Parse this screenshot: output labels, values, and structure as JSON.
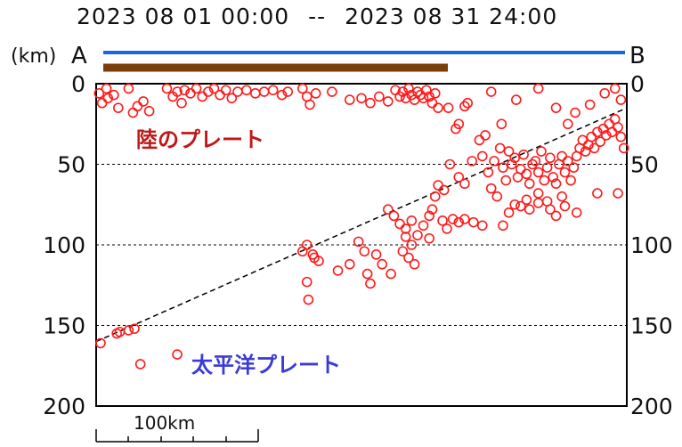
{
  "header": {
    "period_start": "2023 08 01 00:00",
    "separator": "--",
    "period_end": "2023 08 31 24:00",
    "unit_label": "(km)",
    "end_a": "A",
    "end_b": "B"
  },
  "colors": {
    "section_line": "#1a66e0",
    "region_bar": "#7a3e0a",
    "events": "#ff1a1a",
    "land_plate_label": "#c01818",
    "pacific_plate_label": "#3a3ad6"
  },
  "labels": {
    "land_plate": "陸のプレート",
    "pacific_plate": "太平洋プレート"
  },
  "scale_bar": {
    "label": "100km"
  },
  "chart_data": {
    "type": "scatter",
    "title": "",
    "xlabel": "",
    "ylabel": "(km)",
    "ylim": [
      0,
      200
    ],
    "y_inverted": true,
    "yticks": [
      0,
      50,
      100,
      150,
      200
    ],
    "y_tick_labels": [
      "0",
      "50",
      "100",
      "150",
      "200"
    ],
    "xlim": [
      0,
      360
    ],
    "grid_y": [
      50,
      100,
      150
    ],
    "plate_boundary_line": [
      [
        0,
        160
      ],
      [
        360,
        15
      ]
    ],
    "series": [
      {
        "marker": "open-circle",
        "points": [
          [
            2,
            6
          ],
          [
            4,
            12
          ],
          [
            7,
            3
          ],
          [
            8,
            9
          ],
          [
            12,
            7
          ],
          [
            15,
            15
          ],
          [
            22,
            3
          ],
          [
            25,
            18
          ],
          [
            28,
            14
          ],
          [
            32,
            11
          ],
          [
            36,
            17
          ],
          [
            48,
            3
          ],
          [
            52,
            8
          ],
          [
            55,
            5
          ],
          [
            58,
            12
          ],
          [
            60,
            4
          ],
          [
            64,
            6
          ],
          [
            68,
            3
          ],
          [
            72,
            8
          ],
          [
            76,
            5
          ],
          [
            80,
            3
          ],
          [
            84,
            7
          ],
          [
            88,
            4
          ],
          [
            92,
            9
          ],
          [
            96,
            5
          ],
          [
            102,
            4
          ],
          [
            108,
            6
          ],
          [
            114,
            5
          ],
          [
            120,
            4
          ],
          [
            126,
            7
          ],
          [
            130,
            5
          ],
          [
            140,
            3
          ],
          [
            143,
            8
          ],
          [
            145,
            13
          ],
          [
            149,
            6
          ],
          [
            160,
            5
          ],
          [
            172,
            10
          ],
          [
            180,
            9
          ],
          [
            186,
            12
          ],
          [
            192,
            8
          ],
          [
            198,
            11
          ],
          [
            203,
            4
          ],
          [
            206,
            8
          ],
          [
            208,
            5
          ],
          [
            210,
            9
          ],
          [
            212,
            3
          ],
          [
            214,
            7
          ],
          [
            216,
            10
          ],
          [
            218,
            5
          ],
          [
            220,
            7
          ],
          [
            222,
            9
          ],
          [
            224,
            4
          ],
          [
            226,
            8
          ],
          [
            228,
            12
          ],
          [
            230,
            6
          ],
          [
            232,
            15
          ],
          [
            239,
            15
          ],
          [
            244,
            28
          ],
          [
            246,
            25
          ],
          [
            250,
            14
          ],
          [
            252,
            12
          ],
          [
            268,
            5
          ],
          [
            275,
            25
          ],
          [
            285,
            10
          ],
          [
            300,
            3
          ],
          [
            312,
            15
          ],
          [
            320,
            25
          ],
          [
            325,
            18
          ],
          [
            335,
            13
          ],
          [
            345,
            6
          ],
          [
            352,
            3
          ],
          [
            356,
            10
          ],
          [
            262,
            45
          ],
          [
            266,
            55
          ],
          [
            270,
            48
          ],
          [
            274,
            40
          ],
          [
            276,
            52
          ],
          [
            278,
            60
          ],
          [
            280,
            42
          ],
          [
            282,
            50
          ],
          [
            284,
            46
          ],
          [
            286,
            58
          ],
          [
            288,
            53
          ],
          [
            290,
            44
          ],
          [
            292,
            56
          ],
          [
            294,
            62
          ],
          [
            296,
            50
          ],
          [
            298,
            48
          ],
          [
            300,
            55
          ],
          [
            302,
            42
          ],
          [
            304,
            60
          ],
          [
            306,
            52
          ],
          [
            308,
            46
          ],
          [
            310,
            58
          ],
          [
            312,
            62
          ],
          [
            314,
            50
          ],
          [
            316,
            45
          ],
          [
            318,
            55
          ],
          [
            320,
            48
          ],
          [
            322,
            60
          ],
          [
            324,
            52
          ],
          [
            326,
            45
          ],
          [
            328,
            40
          ],
          [
            330,
            35
          ],
          [
            332,
            42
          ],
          [
            334,
            38
          ],
          [
            336,
            33
          ],
          [
            338,
            40
          ],
          [
            340,
            30
          ],
          [
            342,
            36
          ],
          [
            344,
            28
          ],
          [
            346,
            32
          ],
          [
            348,
            25
          ],
          [
            350,
            30
          ],
          [
            352,
            22
          ],
          [
            354,
            27
          ],
          [
            356,
            33
          ],
          [
            358,
            40
          ],
          [
            268,
            65
          ],
          [
            272,
            70
          ],
          [
            284,
            75
          ],
          [
            292,
            72
          ],
          [
            300,
            68
          ],
          [
            306,
            73
          ],
          [
            316,
            70
          ],
          [
            340,
            68
          ],
          [
            354,
            68
          ],
          [
            276,
            88
          ],
          [
            280,
            80
          ],
          [
            288,
            76
          ],
          [
            294,
            78
          ],
          [
            300,
            74
          ],
          [
            308,
            78
          ],
          [
            312,
            82
          ],
          [
            318,
            76
          ],
          [
            326,
            80
          ],
          [
            240,
            50
          ],
          [
            246,
            58
          ],
          [
            250,
            62
          ],
          [
            255,
            48
          ],
          [
            260,
            35
          ],
          [
            264,
            32
          ],
          [
            232,
            63
          ],
          [
            236,
            66
          ],
          [
            230,
            70
          ],
          [
            228,
            78
          ],
          [
            226,
            82
          ],
          [
            198,
            78
          ],
          [
            202,
            82
          ],
          [
            206,
            87
          ],
          [
            210,
            90
          ],
          [
            214,
            85
          ],
          [
            218,
            94
          ],
          [
            222,
            88
          ],
          [
            226,
            96
          ],
          [
            235,
            85
          ],
          [
            238,
            90
          ],
          [
            242,
            84
          ],
          [
            246,
            86
          ],
          [
            250,
            84
          ],
          [
            256,
            86
          ],
          [
            262,
            88
          ],
          [
            210,
            95
          ],
          [
            214,
            100
          ],
          [
            208,
            104
          ],
          [
            212,
            108
          ],
          [
            216,
            112
          ],
          [
            178,
            98
          ],
          [
            182,
            104
          ],
          [
            190,
            106
          ],
          [
            194,
            112
          ],
          [
            200,
            118
          ],
          [
            184,
            118
          ],
          [
            186,
            124
          ],
          [
            148,
            108
          ],
          [
            151,
            110
          ],
          [
            147,
            106
          ],
          [
            143,
            100
          ],
          [
            140,
            104
          ],
          [
            143,
            123
          ],
          [
            144,
            134
          ],
          [
            164,
            116
          ],
          [
            172,
            112
          ],
          [
            3,
            161
          ],
          [
            14,
            155
          ],
          [
            16,
            154
          ],
          [
            22,
            153
          ],
          [
            26,
            152
          ],
          [
            30,
            174
          ],
          [
            55,
            168
          ]
        ]
      }
    ]
  }
}
